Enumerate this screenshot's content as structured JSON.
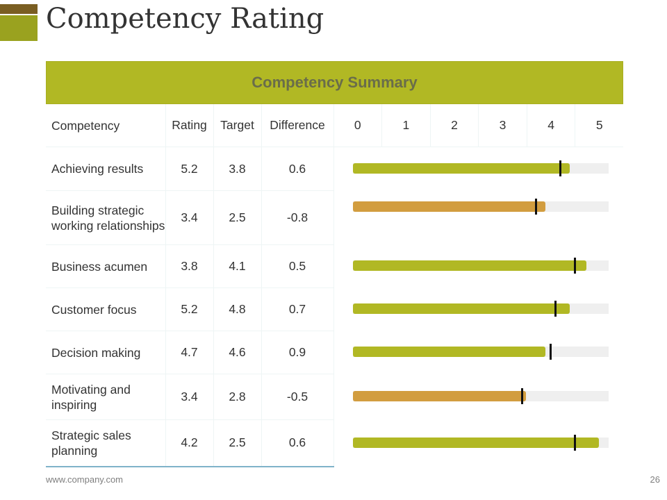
{
  "slide": {
    "title": "Competency Rating",
    "summary_title": "Competency Summary",
    "footer_url": "www.company.com",
    "page_number": "26"
  },
  "table": {
    "headers": [
      "Competency",
      "Rating",
      "Target",
      "Difference"
    ],
    "scale_labels": [
      "0",
      "1",
      "2",
      "3",
      "4",
      "5"
    ],
    "rows": [
      {
        "name": "Achieving results",
        "rating": "5.2",
        "target": "3.8",
        "difference": "0.6",
        "bar_value": 4.5,
        "marker_value": 4.3,
        "status": "positive"
      },
      {
        "name": "Building strategic working relationships",
        "rating": "3.4",
        "target": "2.5",
        "difference": "-0.8",
        "bar_value": 4.0,
        "marker_value": 3.8,
        "status": "negative"
      },
      {
        "name": "Business acumen",
        "rating": "3.8",
        "target": "4.1",
        "difference": "0.5",
        "bar_value": 4.85,
        "marker_value": 4.6,
        "status": "positive"
      },
      {
        "name": "Customer focus",
        "rating": "5.2",
        "target": "4.8",
        "difference": "0.7",
        "bar_value": 4.5,
        "marker_value": 4.2,
        "status": "positive"
      },
      {
        "name": "Decision making",
        "rating": "4.7",
        "target": "4.6",
        "difference": "0.9",
        "bar_value": 4.0,
        "marker_value": 4.1,
        "status": "positive"
      },
      {
        "name": "Motivating and inspiring",
        "rating": "3.4",
        "target": "2.8",
        "difference": "-0.5",
        "bar_value": 3.6,
        "marker_value": 3.5,
        "status": "negative"
      },
      {
        "name": "Strategic sales planning",
        "rating": "4.2",
        "target": "2.5",
        "difference": "0.6",
        "bar_value": 5.1,
        "marker_value": 4.6,
        "status": "positive"
      }
    ]
  },
  "colors": {
    "accent_brown": "#7a5e22",
    "accent_olive": "#9aa21f",
    "header_fill": "#b1b824",
    "bar_positive": "#b1b824",
    "bar_negative": "#d29d3f",
    "track": "#efefef",
    "marker": "#111111"
  }
}
